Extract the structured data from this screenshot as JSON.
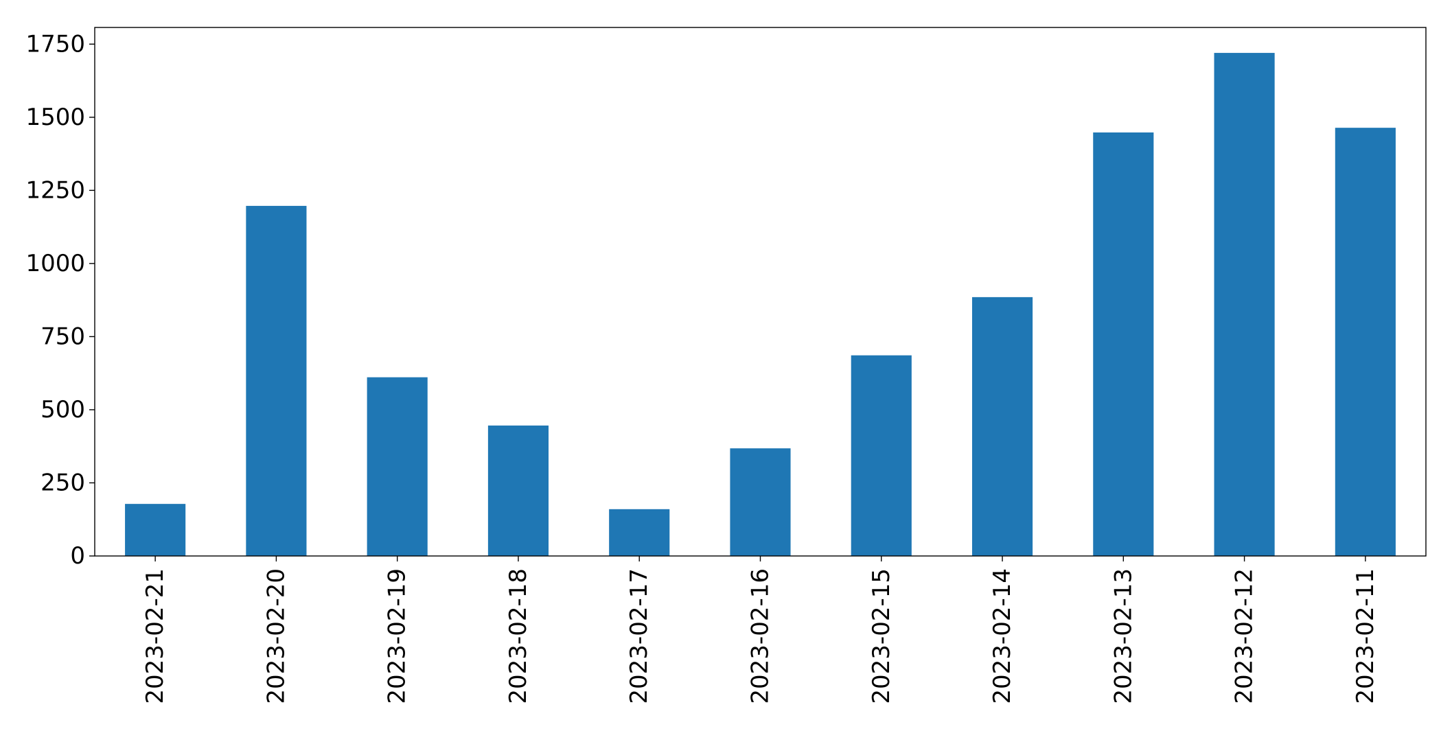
{
  "chart_data": {
    "type": "bar",
    "title": "",
    "xlabel": "",
    "ylabel": "",
    "categories": [
      "2023-02-21",
      "2023-02-20",
      "2023-02-19",
      "2023-02-18",
      "2023-02-17",
      "2023-02-16",
      "2023-02-15",
      "2023-02-14",
      "2023-02-13",
      "2023-02-12",
      "2023-02-11"
    ],
    "values": [
      178,
      1197,
      611,
      446,
      160,
      368,
      686,
      885,
      1448,
      1720,
      1464
    ],
    "ylim": [
      0,
      1807
    ],
    "yticks": [
      0,
      250,
      500,
      750,
      1000,
      1250,
      1500,
      1750
    ],
    "ytick_labels": [
      "0",
      "250",
      "500",
      "750",
      "1000",
      "1250",
      "1500",
      "1750"
    ],
    "bar_color": "#1f77b4",
    "grid": false,
    "legend": false
  }
}
